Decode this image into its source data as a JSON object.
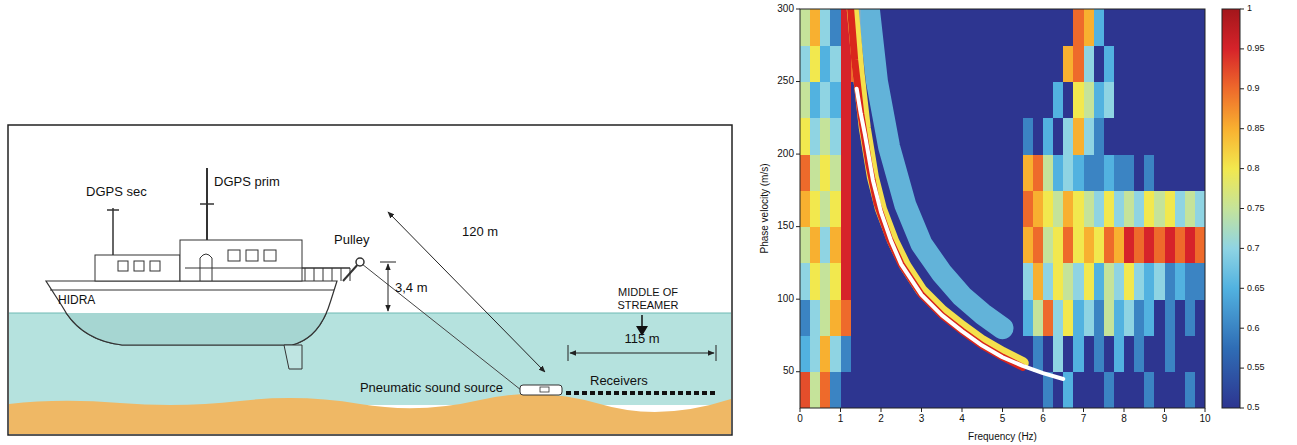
{
  "diagram": {
    "labels": {
      "dgps_sec": "DGPS sec",
      "dgps_prim": "DGPS prim",
      "ship": "HIDRA",
      "pulley": "Pulley",
      "height": "3,4 m",
      "cable": "120 m",
      "middle": "MIDDLE OF STREAMER",
      "streamer_length": "115 m",
      "source": "Pneumatic sound source",
      "receivers": "Receivers"
    }
  },
  "chart_data": {
    "type": "heatmap",
    "x_label": "Frequency (Hz)",
    "y_label": "Phase velocity (m/s)",
    "xlim": [
      0,
      10
    ],
    "ylim": [
      25,
      300
    ],
    "xticks": [
      0,
      1,
      2,
      3,
      4,
      5,
      6,
      7,
      8,
      9,
      10
    ],
    "yticks": [
      50,
      100,
      150,
      200,
      250,
      300
    ],
    "cells": {
      "x_edges": [
        0,
        0.25,
        0.5,
        0.75,
        1,
        1.25,
        1.5,
        1.75,
        2,
        2.25,
        2.5,
        2.75,
        3,
        3.25,
        3.5,
        3.75,
        4,
        4.25,
        4.5,
        4.75,
        5,
        5.25,
        5.5,
        5.75,
        6,
        6.25,
        6.5,
        6.75,
        7,
        7.25,
        7.5,
        7.75,
        8,
        8.25,
        8.5,
        8.75,
        9,
        9.25,
        9.5,
        9.75,
        10
      ],
      "y_edges": [
        25,
        50,
        75,
        100,
        125,
        150,
        175,
        200,
        225,
        250,
        275,
        300
      ],
      "values": [
        [
          0.92,
          0.75,
          0.9,
          0.6,
          0.5,
          0.5,
          0.5,
          0.5,
          0.5,
          0.5,
          0.5,
          0.5,
          0.5,
          0.5,
          0.5,
          0.5,
          0.5,
          0.5,
          0.5,
          0.5,
          0.5,
          0.5,
          0.5,
          0.5,
          0.6,
          0.5,
          0.65,
          0.5,
          0.5,
          0.5,
          0.6,
          0.5,
          0.5,
          0.5,
          0.6,
          0.5,
          0.5,
          0.5,
          0.6,
          0.5
        ],
        [
          0.65,
          0.7,
          0.85,
          0.7,
          0.6,
          0.5,
          0.5,
          0.5,
          0.5,
          0.5,
          0.5,
          0.5,
          0.5,
          0.5,
          0.5,
          0.5,
          0.5,
          0.5,
          0.5,
          0.5,
          0.5,
          0.5,
          0.5,
          0.6,
          0.5,
          0.7,
          0.5,
          0.65,
          0.5,
          0.6,
          0.5,
          0.65,
          0.5,
          0.6,
          0.5,
          0.5,
          0.6,
          0.5,
          0.5,
          0.5
        ],
        [
          0.6,
          0.7,
          0.75,
          0.85,
          0.9,
          0.5,
          0.5,
          0.5,
          0.5,
          0.5,
          0.5,
          0.5,
          0.5,
          0.5,
          0.5,
          0.5,
          0.5,
          0.5,
          0.5,
          0.5,
          0.5,
          0.5,
          0.65,
          0.75,
          0.9,
          0.7,
          0.8,
          0.65,
          0.7,
          0.6,
          0.75,
          0.65,
          0.7,
          0.6,
          0.65,
          0.5,
          0.6,
          0.5,
          0.6,
          0.5
        ],
        [
          0.7,
          0.8,
          0.75,
          0.8,
          0.95,
          0.5,
          0.5,
          0.5,
          0.5,
          0.5,
          0.5,
          0.5,
          0.5,
          0.5,
          0.5,
          0.5,
          0.5,
          0.5,
          0.5,
          0.5,
          0.5,
          0.5,
          0.7,
          0.85,
          0.7,
          0.8,
          0.75,
          0.7,
          0.8,
          0.65,
          0.75,
          0.7,
          0.8,
          0.7,
          0.65,
          0.7,
          0.6,
          0.65,
          0.6,
          0.6
        ],
        [
          0.75,
          0.85,
          0.7,
          0.85,
          0.95,
          0.5,
          0.5,
          0.5,
          0.5,
          0.5,
          0.5,
          0.5,
          0.5,
          0.5,
          0.5,
          0.5,
          0.5,
          0.5,
          0.5,
          0.5,
          0.5,
          0.5,
          0.85,
          0.9,
          0.75,
          0.8,
          0.9,
          0.8,
          0.85,
          0.8,
          0.9,
          0.85,
          0.95,
          0.9,
          0.95,
          0.9,
          0.95,
          0.9,
          0.95,
          0.9
        ],
        [
          0.85,
          0.8,
          0.75,
          0.8,
          0.95,
          0.5,
          0.5,
          0.5,
          0.5,
          0.5,
          0.5,
          0.5,
          0.5,
          0.5,
          0.5,
          0.5,
          0.5,
          0.5,
          0.5,
          0.5,
          0.5,
          0.5,
          0.9,
          0.85,
          0.8,
          0.75,
          0.85,
          0.8,
          0.75,
          0.7,
          0.8,
          0.7,
          0.75,
          0.7,
          0.8,
          0.75,
          0.8,
          0.7,
          0.75,
          0.7
        ],
        [
          0.9,
          0.75,
          0.8,
          0.75,
          0.95,
          0.5,
          0.5,
          0.5,
          0.5,
          0.5,
          0.5,
          0.5,
          0.5,
          0.5,
          0.5,
          0.5,
          0.5,
          0.5,
          0.5,
          0.5,
          0.5,
          0.5,
          0.85,
          0.9,
          0.75,
          0.65,
          0.7,
          0.65,
          0.6,
          0.6,
          0.65,
          0.6,
          0.6,
          0.5,
          0.6,
          0.5,
          0.5,
          0.5,
          0.5,
          0.5
        ],
        [
          0.8,
          0.7,
          0.75,
          0.7,
          0.95,
          0.5,
          0.5,
          0.5,
          0.5,
          0.5,
          0.5,
          0.5,
          0.5,
          0.5,
          0.5,
          0.5,
          0.5,
          0.5,
          0.5,
          0.5,
          0.5,
          0.5,
          0.6,
          0.5,
          0.65,
          0.5,
          0.7,
          0.85,
          0.7,
          0.6,
          0.5,
          0.5,
          0.5,
          0.5,
          0.5,
          0.5,
          0.5,
          0.5,
          0.5,
          0.5
        ],
        [
          0.75,
          0.65,
          0.7,
          0.65,
          0.95,
          0.5,
          0.5,
          0.5,
          0.5,
          0.5,
          0.5,
          0.5,
          0.5,
          0.5,
          0.5,
          0.5,
          0.5,
          0.5,
          0.5,
          0.5,
          0.5,
          0.5,
          0.5,
          0.5,
          0.5,
          0.65,
          0.5,
          0.8,
          0.75,
          0.65,
          0.7,
          0.5,
          0.5,
          0.5,
          0.5,
          0.5,
          0.5,
          0.5,
          0.5,
          0.5
        ],
        [
          0.7,
          0.8,
          0.65,
          0.7,
          0.95,
          0.9,
          0.5,
          0.5,
          0.5,
          0.5,
          0.5,
          0.5,
          0.5,
          0.5,
          0.5,
          0.5,
          0.5,
          0.5,
          0.5,
          0.5,
          0.5,
          0.5,
          0.5,
          0.5,
          0.5,
          0.5,
          0.85,
          0.9,
          0.7,
          0.5,
          0.65,
          0.5,
          0.5,
          0.5,
          0.5,
          0.5,
          0.5,
          0.5,
          0.5,
          0.5
        ],
        [
          0.75,
          0.85,
          0.7,
          0.6,
          0.95,
          0.95,
          0.5,
          0.5,
          0.5,
          0.5,
          0.5,
          0.5,
          0.5,
          0.5,
          0.5,
          0.5,
          0.5,
          0.5,
          0.5,
          0.5,
          0.5,
          0.5,
          0.5,
          0.5,
          0.5,
          0.5,
          0.5,
          0.9,
          0.85,
          0.65,
          0.5,
          0.5,
          0.5,
          0.5,
          0.5,
          0.5,
          0.5,
          0.5,
          0.5,
          0.5
        ]
      ]
    },
    "colorbar": {
      "range": [
        0.5,
        1
      ],
      "ticks": [
        0.5,
        0.55,
        0.6,
        0.65,
        0.7,
        0.75,
        0.8,
        0.85,
        0.9,
        0.95,
        1
      ]
    },
    "series": [
      {
        "type": "line",
        "color": "#6cc9e6",
        "x": [
          1.7,
          1.9,
          2.2,
          2.6,
          3,
          3.5,
          4,
          4.5,
          5
        ],
        "values": [
          300,
          250,
          205,
          165,
          138,
          118,
          102,
          90,
          80
        ]
      },
      {
        "type": "line",
        "color": "#f4e04d",
        "x": [
          1.3,
          1.45,
          1.6,
          1.8,
          2,
          2.3,
          2.6,
          3,
          3.5,
          4,
          4.5,
          5,
          5.5
        ],
        "values": [
          300,
          255,
          218,
          184,
          162,
          140,
          123,
          106,
          92,
          81,
          71,
          63,
          56
        ]
      },
      {
        "type": "line",
        "color": "#d9261c",
        "x": [
          1.25,
          1.35,
          1.5,
          1.7,
          1.9,
          2.2,
          2.5,
          3,
          3.5,
          4,
          4.5,
          5,
          5.5
        ],
        "values": [
          300,
          265,
          228,
          193,
          166,
          142,
          124,
          103,
          89,
          78,
          68,
          60,
          53
        ]
      },
      {
        "type": "line",
        "color": "#ffffff",
        "x": [
          1.4,
          1.5,
          1.6,
          1.8,
          2,
          2.25,
          2.5,
          3,
          3.5,
          4,
          4.5,
          5,
          5.5,
          6,
          6.5
        ],
        "values": [
          245,
          228,
          214,
          182,
          160,
          140,
          124,
          103,
          89,
          78,
          68,
          60,
          54,
          49,
          45
        ]
      }
    ]
  }
}
